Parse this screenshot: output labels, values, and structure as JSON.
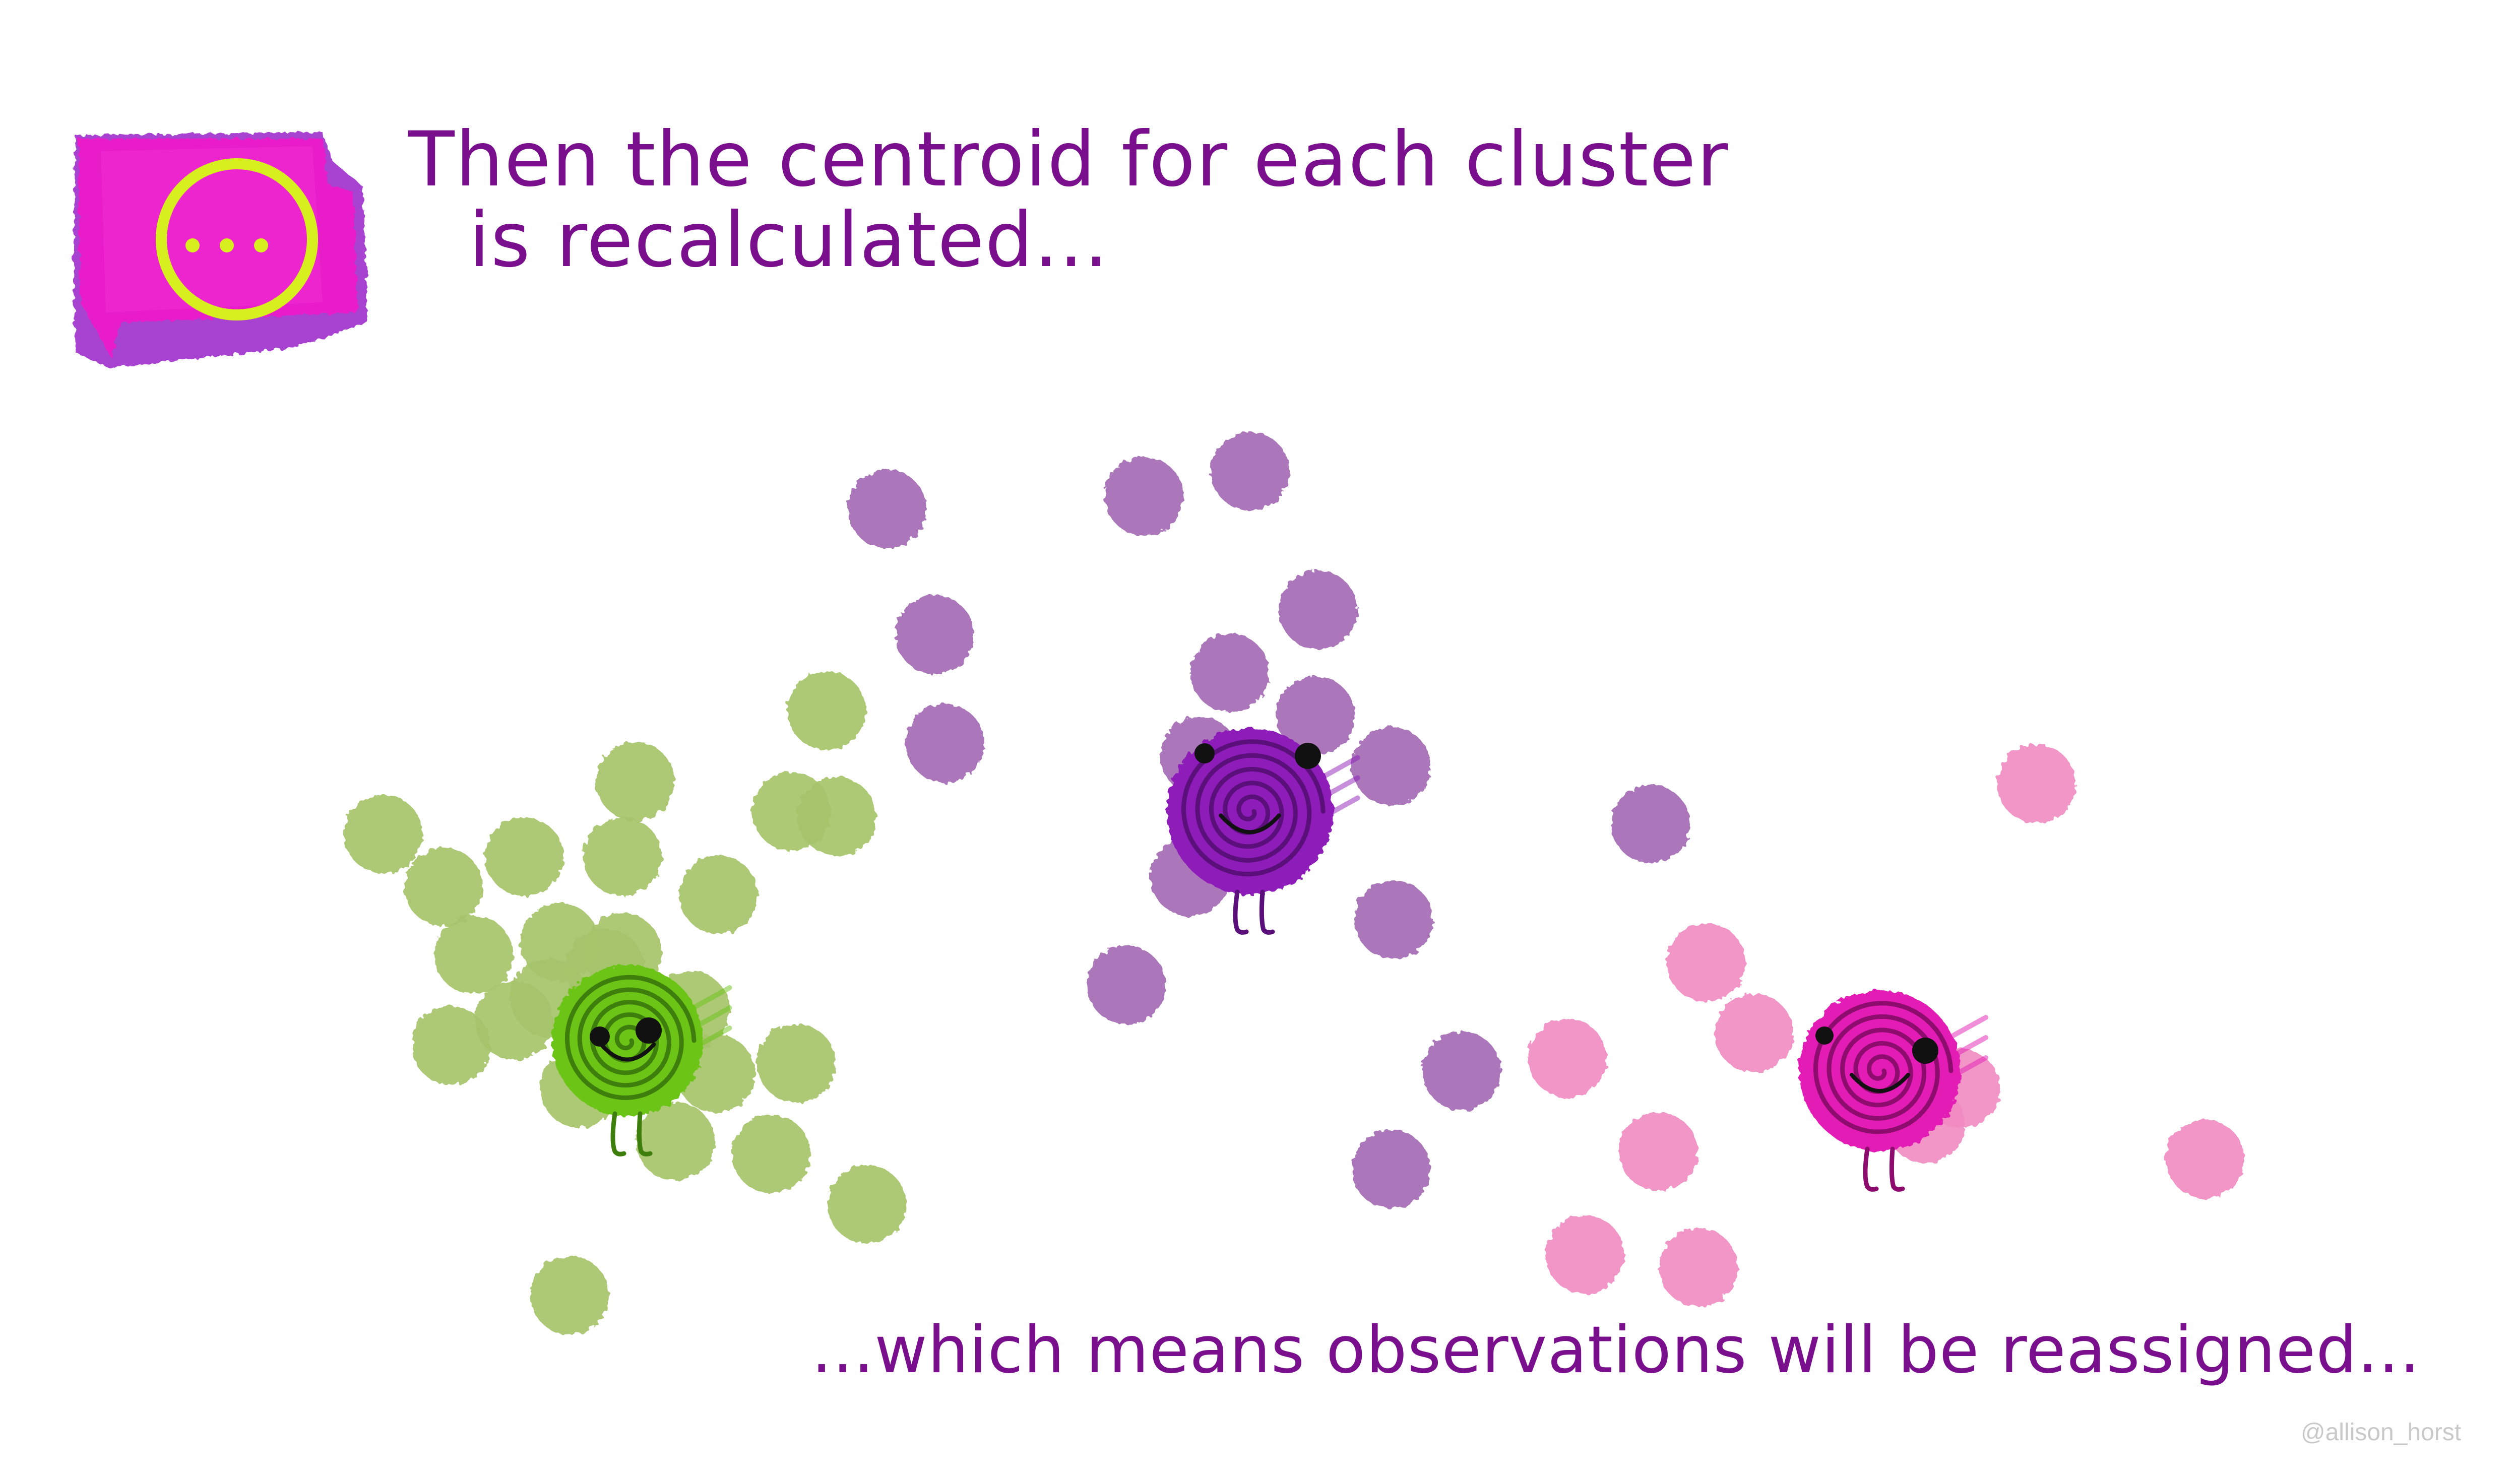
{
  "header": {
    "line1": "Then the centroid for each cluster",
    "line2": "is recalculated...",
    "badge_icon": "ellipsis-in-circle-icon",
    "badge_text": "..."
  },
  "caption": "...which means observations will be reassigned...",
  "watermark": "@allison_horst",
  "colors": {
    "text": "#7a0f8e",
    "badge_bg": "#e81fc9",
    "badge_ring": "#d8ef1f",
    "green_point": "#a6c46a",
    "purple_point": "#a46bb4",
    "pink_point": "#f18cc2",
    "green_centroid": "#6cc419",
    "purple_centroid": "#8d1fb8",
    "pink_centroid": "#e21fb4"
  },
  "clusters": [
    {
      "name": "green",
      "centroid_icon": "green-spiral-centroid-icon",
      "point_count": 24
    },
    {
      "name": "purple",
      "centroid_icon": "purple-spiral-centroid-icon",
      "point_count": 16
    },
    {
      "name": "pink",
      "centroid_icon": "pink-spiral-centroid-icon",
      "point_count": 10
    }
  ]
}
